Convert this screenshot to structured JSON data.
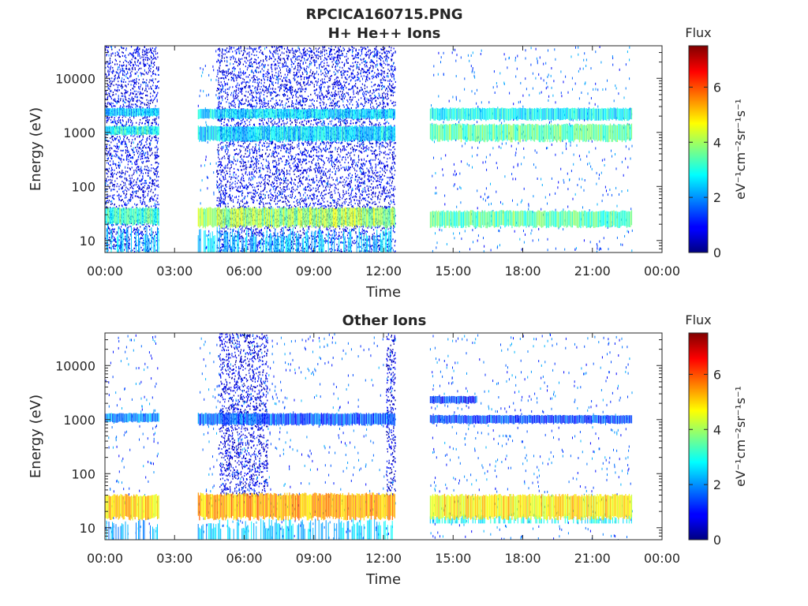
{
  "figure_title": "RPCICA160715.PNG",
  "chart_data": [
    {
      "type": "heatmap",
      "title": "H+ He++ Ions",
      "xlabel": "Time",
      "ylabel": "Energy (eV)",
      "x_ticks": [
        "00:00",
        "03:00",
        "06:00",
        "09:00",
        "12:00",
        "15:00",
        "18:00",
        "21:00",
        "00:00"
      ],
      "x_range_hours": [
        0,
        24
      ],
      "y_scale": "log",
      "y_ticks": [
        "10",
        "100",
        "1000",
        "10000"
      ],
      "y_range": [
        6,
        40000
      ],
      "colorbar": {
        "title": "Flux",
        "label": "eV⁻¹cm⁻²sr⁻¹s⁻¹",
        "ticks": [
          "0",
          "2",
          "4",
          "6"
        ],
        "range": [
          0,
          7.5
        ]
      },
      "data_segments_hours": [
        [
          0,
          2.3
        ],
        [
          4.0,
          12.5
        ],
        [
          14.0,
          22.7
        ]
      ],
      "bands": [
        {
          "t": [
            0,
            2.3
          ],
          "e": [
            20,
            40
          ],
          "flux": 3.2
        },
        {
          "t": [
            0,
            2.3
          ],
          "e": [
            900,
            1300
          ],
          "flux": 3.0
        },
        {
          "t": [
            0,
            2.3
          ],
          "e": [
            2000,
            2800
          ],
          "flux": 2.4
        },
        {
          "t": [
            4.0,
            12.5
          ],
          "e": [
            18,
            40
          ],
          "flux": 4.0
        },
        {
          "t": [
            4.0,
            12.5
          ],
          "e": [
            700,
            1300
          ],
          "flux": 2.6
        },
        {
          "t": [
            4.0,
            12.5
          ],
          "e": [
            1800,
            2700
          ],
          "flux": 2.6
        },
        {
          "t": [
            14.0,
            22.7
          ],
          "e": [
            18,
            35
          ],
          "flux": 3.4
        },
        {
          "t": [
            14.0,
            22.7
          ],
          "e": [
            700,
            1400
          ],
          "flux": 3.5
        },
        {
          "t": [
            14.0,
            22.7
          ],
          "e": [
            1700,
            2800
          ],
          "flux": 2.8
        }
      ],
      "dense_background": [
        {
          "t": [
            0,
            2.3
          ],
          "e": [
            6,
            40000
          ],
          "flux": 0.8
        },
        {
          "t": [
            4.8,
            12.5
          ],
          "e": [
            6,
            40000
          ],
          "flux": 0.8
        }
      ],
      "low_energy_streaks": [
        {
          "t": [
            0,
            2.3
          ],
          "e": [
            6,
            20
          ],
          "flux": 2.4
        },
        {
          "t": [
            4.0,
            12.5
          ],
          "e": [
            6,
            18
          ],
          "flux": 2.4
        }
      ]
    },
    {
      "type": "heatmap",
      "title": "Other Ions",
      "xlabel": "Time",
      "ylabel": "Energy (eV)",
      "x_ticks": [
        "00:00",
        "03:00",
        "06:00",
        "09:00",
        "12:00",
        "15:00",
        "18:00",
        "21:00",
        "00:00"
      ],
      "x_range_hours": [
        0,
        24
      ],
      "y_scale": "log",
      "y_ticks": [
        "10",
        "100",
        "1000",
        "10000"
      ],
      "y_range": [
        6,
        40000
      ],
      "colorbar": {
        "title": "Flux",
        "label": "eV⁻¹cm⁻²sr⁻¹s⁻¹",
        "ticks": [
          "0",
          "2",
          "4",
          "6"
        ],
        "range": [
          0,
          7.5
        ]
      },
      "data_segments_hours": [
        [
          0,
          2.3
        ],
        [
          4.0,
          12.5
        ],
        [
          14.0,
          22.7
        ]
      ],
      "bands": [
        {
          "t": [
            0,
            2.3
          ],
          "e": [
            15,
            40
          ],
          "flux": 5.0
        },
        {
          "t": [
            0,
            2.3
          ],
          "e": [
            900,
            1300
          ],
          "flux": 2.0
        },
        {
          "t": [
            4.0,
            12.5
          ],
          "e": [
            15,
            42
          ],
          "flux": 5.3
        },
        {
          "t": [
            4.0,
            12.5
          ],
          "e": [
            800,
            1300
          ],
          "flux": 1.6
        },
        {
          "t": [
            14.0,
            22.7
          ],
          "e": [
            15,
            40
          ],
          "flux": 4.8
        },
        {
          "t": [
            14.0,
            22.7
          ],
          "e": [
            850,
            1200
          ],
          "flux": 1.4
        },
        {
          "t": [
            14.0,
            16.0
          ],
          "e": [
            2000,
            2700
          ],
          "flux": 1.3
        }
      ],
      "dense_background": [
        {
          "t": [
            4.9,
            7.0
          ],
          "e": [
            40,
            40000
          ],
          "flux": 0.7
        },
        {
          "t": [
            12.1,
            12.5
          ],
          "e": [
            40,
            40000
          ],
          "flux": 0.7
        }
      ],
      "low_energy_streaks": [
        {
          "t": [
            0,
            2.3
          ],
          "e": [
            6,
            15
          ],
          "flux": 2.2
        },
        {
          "t": [
            4.0,
            12.5
          ],
          "e": [
            6,
            15
          ],
          "flux": 2.4
        },
        {
          "t": [
            14.0,
            22.7
          ],
          "e": [
            12,
            18
          ],
          "flux": 2.8
        }
      ]
    }
  ]
}
